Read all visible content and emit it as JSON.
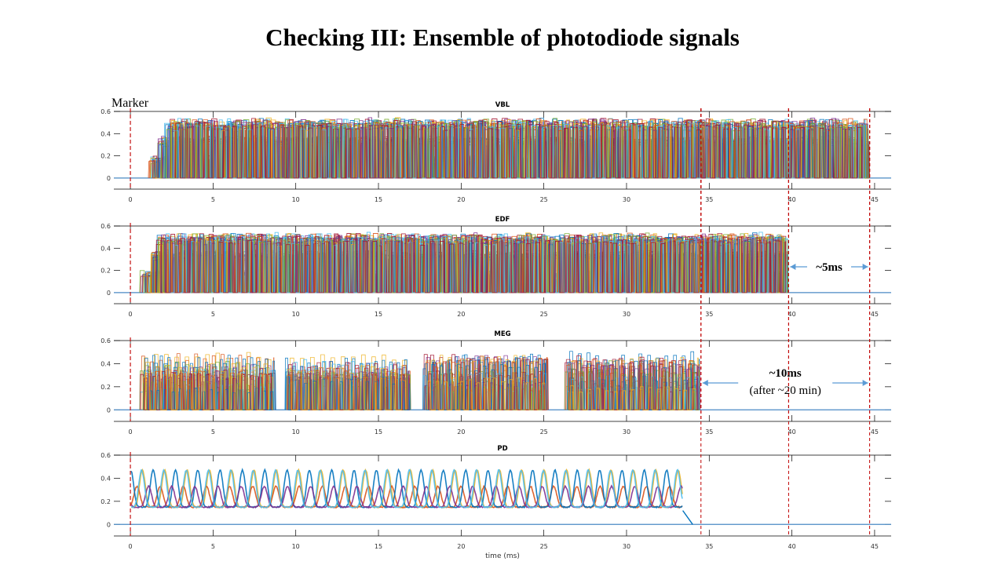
{
  "slide": {
    "title": "Checking III: Ensemble of photodiode signals"
  },
  "chart_data": {
    "type": "line",
    "x_ticks": [
      0,
      5,
      10,
      15,
      20,
      25,
      30,
      35,
      40,
      45
    ],
    "y_ticks": [
      0,
      0.2,
      0.4,
      0.6
    ],
    "y_tick_labels": [
      "0",
      "0.2",
      "0.4",
      "0.6"
    ],
    "xlim": [
      -1,
      46
    ],
    "ylim": [
      -0.1,
      0.6
    ],
    "xlabel": "time (ms)",
    "marker_label": "Marker",
    "marker_x": 0,
    "reference_lines_x": [
      34.5,
      39.8,
      44.7
    ],
    "panels": [
      {
        "title": "VBL",
        "signal_start_ms": 1.0,
        "signal_end_ms": 44.7,
        "plateau": 0.52,
        "levels": [
          0.18,
          0.36,
          0.52
        ],
        "style": "dense"
      },
      {
        "title": "EDF",
        "signal_start_ms": 0.5,
        "signal_end_ms": 39.8,
        "plateau": 0.52,
        "levels": [
          0.18,
          0.36,
          0.52
        ],
        "style": "dense",
        "annotation": {
          "label": "~5ms",
          "from_ms": 39.8,
          "to_ms": 44.7
        }
      },
      {
        "title": "MEG",
        "signal_start_ms": 0.5,
        "signal_end_ms": 34.5,
        "plateau": 0.5,
        "style": "bursts",
        "annotation": {
          "label": "~10ms",
          "sublabel": "(after ~20 min)",
          "from_ms": 34.5,
          "to_ms": 44.7
        }
      },
      {
        "title": "PD",
        "signal_start_ms": 0,
        "signal_end_ms": 33.4,
        "plateau": 0.5,
        "style": "sparse"
      }
    ],
    "grid": false,
    "legend": "none"
  },
  "colors": {
    "trace_palette": [
      "#0072BD",
      "#D95319",
      "#EDB120",
      "#7E2F8E",
      "#77AC30",
      "#4DBEEE",
      "#A2142F"
    ],
    "marker": "#c00000",
    "reference_line": "#c00000",
    "arrow": "#5b9bd5",
    "baseline": "#4a8ac4"
  }
}
